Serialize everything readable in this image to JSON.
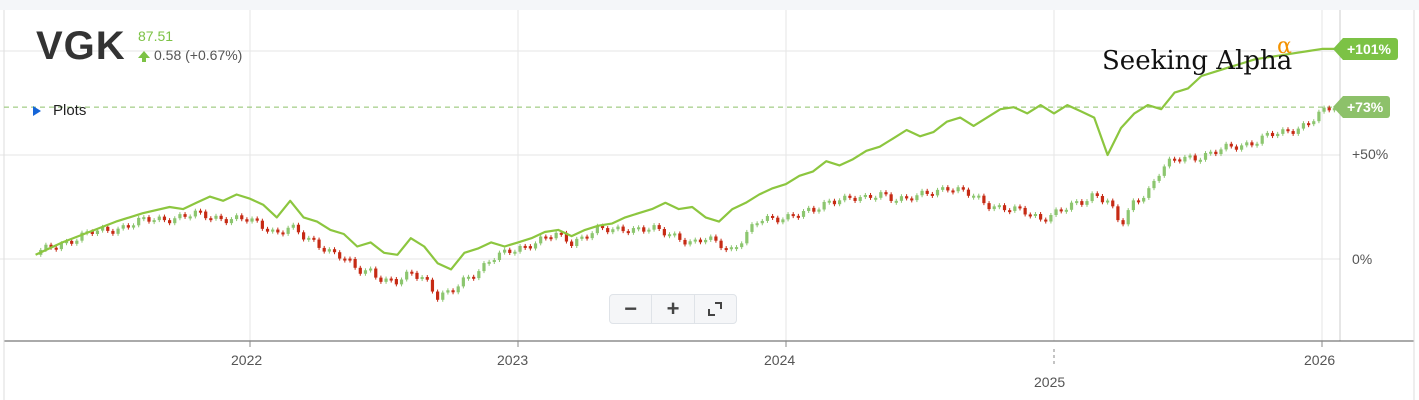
{
  "header": {
    "ticker": "VGK",
    "price": "87.51",
    "change": "0.58 (+0.67%)",
    "plots_label": "Plots",
    "brand": "Seeking Alpha",
    "brand_mark": "α"
  },
  "zoom_controls": {
    "zoom_out": "−",
    "zoom_in": "+",
    "fullscreen_icon": "expand-icon"
  },
  "colors": {
    "line": "#8cc63f",
    "up": "#8cc66f",
    "down": "#c62a14",
    "grid": "#e6e6e6",
    "badge": "#7cc245"
  },
  "chart_data": {
    "type": "line",
    "ticker": "VGK",
    "y_unit": "% change",
    "ylim": [
      -72,
      100
    ],
    "ytick_labels": [
      "0%",
      "+50%"
    ],
    "yticks": [
      0,
      50
    ],
    "xlim": [
      2021.2,
      2026.2
    ],
    "xtick_labels": [
      "2022",
      "2023",
      "2024",
      "2025",
      "2026"
    ],
    "xticks": [
      2022,
      2023,
      2024,
      2025,
      2026
    ],
    "reference_line": {
      "value": 73,
      "label": "+73%"
    },
    "end_label": "+101%",
    "grid": true,
    "series": [
      {
        "style": "line",
        "x": [
          2021.2,
          2021.3,
          2021.4,
          2021.5,
          2021.55,
          2021.6,
          2021.7,
          2021.75,
          2021.8,
          2021.85,
          2021.9,
          2021.95,
          2022.0,
          2022.05,
          2022.1,
          2022.15,
          2022.2,
          2022.25,
          2022.3,
          2022.35,
          2022.4,
          2022.45,
          2022.5,
          2022.55,
          2022.6,
          2022.65,
          2022.7,
          2022.75,
          2022.8,
          2022.85,
          2022.9,
          2022.95,
          2023.0,
          2023.05,
          2023.1,
          2023.15,
          2023.2,
          2023.25,
          2023.3,
          2023.35,
          2023.4,
          2023.45,
          2023.5,
          2023.55,
          2023.6,
          2023.65,
          2023.7,
          2023.75,
          2023.8,
          2023.85,
          2023.9,
          2023.95,
          2024.0,
          2024.05,
          2024.1,
          2024.15,
          2024.2,
          2024.25,
          2024.3,
          2024.35,
          2024.4,
          2024.45,
          2024.5,
          2024.55,
          2024.6,
          2024.65,
          2024.7,
          2024.75,
          2024.8,
          2024.85,
          2024.9,
          2024.95,
          2025.0,
          2025.05,
          2025.1,
          2025.15,
          2025.2,
          2025.25,
          2025.3,
          2025.35,
          2025.4,
          2025.45,
          2025.5,
          2025.55,
          2025.6,
          2025.65,
          2025.7,
          2025.75,
          2025.8,
          2025.85,
          2025.9,
          2025.95,
          2026.0,
          2026.05
        ],
        "y": [
          2,
          8,
          13,
          18,
          20,
          22,
          25,
          24,
          27,
          30,
          28,
          31,
          29,
          26,
          20,
          28,
          20,
          18,
          14,
          12,
          6,
          8,
          3,
          2,
          10,
          6,
          -2,
          -5,
          3,
          5,
          8,
          6,
          8,
          10,
          13,
          14,
          11,
          14,
          16,
          17,
          20,
          22,
          24,
          27,
          24,
          25,
          20,
          18,
          24,
          27,
          31,
          34,
          36,
          40,
          42,
          47,
          45,
          48,
          52,
          54,
          58,
          62,
          59,
          61,
          66,
          68,
          64,
          68,
          72,
          73,
          70,
          74,
          70,
          74,
          71,
          68,
          50,
          63,
          70,
          74,
          72,
          80,
          82,
          88,
          90,
          92,
          94,
          96,
          97,
          98,
          99,
          100,
          101,
          101
        ]
      },
      {
        "style": "candles",
        "x": [
          2021.2,
          2021.3,
          2021.4,
          2021.5,
          2021.6,
          2021.7,
          2021.8,
          2021.9,
          2022.0,
          2022.05,
          2022.1,
          2022.15,
          2022.2,
          2022.25,
          2022.3,
          2022.35,
          2022.4,
          2022.45,
          2022.5,
          2022.55,
          2022.6,
          2022.65,
          2022.7,
          2022.75,
          2022.8,
          2022.85,
          2022.9,
          2022.95,
          2023.0,
          2023.05,
          2023.1,
          2023.15,
          2023.2,
          2023.25,
          2023.3,
          2023.35,
          2023.4,
          2023.45,
          2023.5,
          2023.55,
          2023.6,
          2023.65,
          2023.7,
          2023.75,
          2023.8,
          2023.85,
          2023.9,
          2023.95,
          2024.0,
          2024.05,
          2024.1,
          2024.15,
          2024.2,
          2024.25,
          2024.3,
          2024.35,
          2024.4,
          2024.45,
          2024.5,
          2024.55,
          2024.6,
          2024.65,
          2024.7,
          2024.75,
          2024.8,
          2024.85,
          2024.9,
          2024.95,
          2025.0,
          2025.05,
          2025.1,
          2025.15,
          2025.2,
          2025.25,
          2025.3,
          2025.35,
          2025.4,
          2025.45,
          2025.5,
          2025.55,
          2025.6,
          2025.65,
          2025.7,
          2025.75,
          2025.8,
          2025.85,
          2025.9,
          2025.95,
          2026.0,
          2026.05
        ],
        "y": [
          2,
          8,
          12,
          15,
          18,
          20,
          21,
          20,
          18,
          16,
          13,
          15,
          10,
          8,
          4,
          0,
          -6,
          -5,
          -10,
          -12,
          -7,
          -8,
          -18,
          -17,
          -10,
          -5,
          0,
          2,
          5,
          8,
          10,
          11,
          8,
          12,
          14,
          13,
          15,
          15,
          14,
          12,
          11,
          8,
          9,
          7,
          5,
          12,
          18,
          19,
          21,
          22,
          22,
          27,
          30,
          29,
          28,
          32,
          30,
          28,
          30,
          33,
          35,
          32,
          30,
          27,
          25,
          23,
          22,
          20,
          22,
          24,
          27,
          32,
          28,
          15,
          28,
          33,
          43,
          47,
          49,
          50,
          51,
          53,
          55,
          57,
          59,
          60,
          63,
          66,
          70,
          73
        ]
      }
    ]
  }
}
